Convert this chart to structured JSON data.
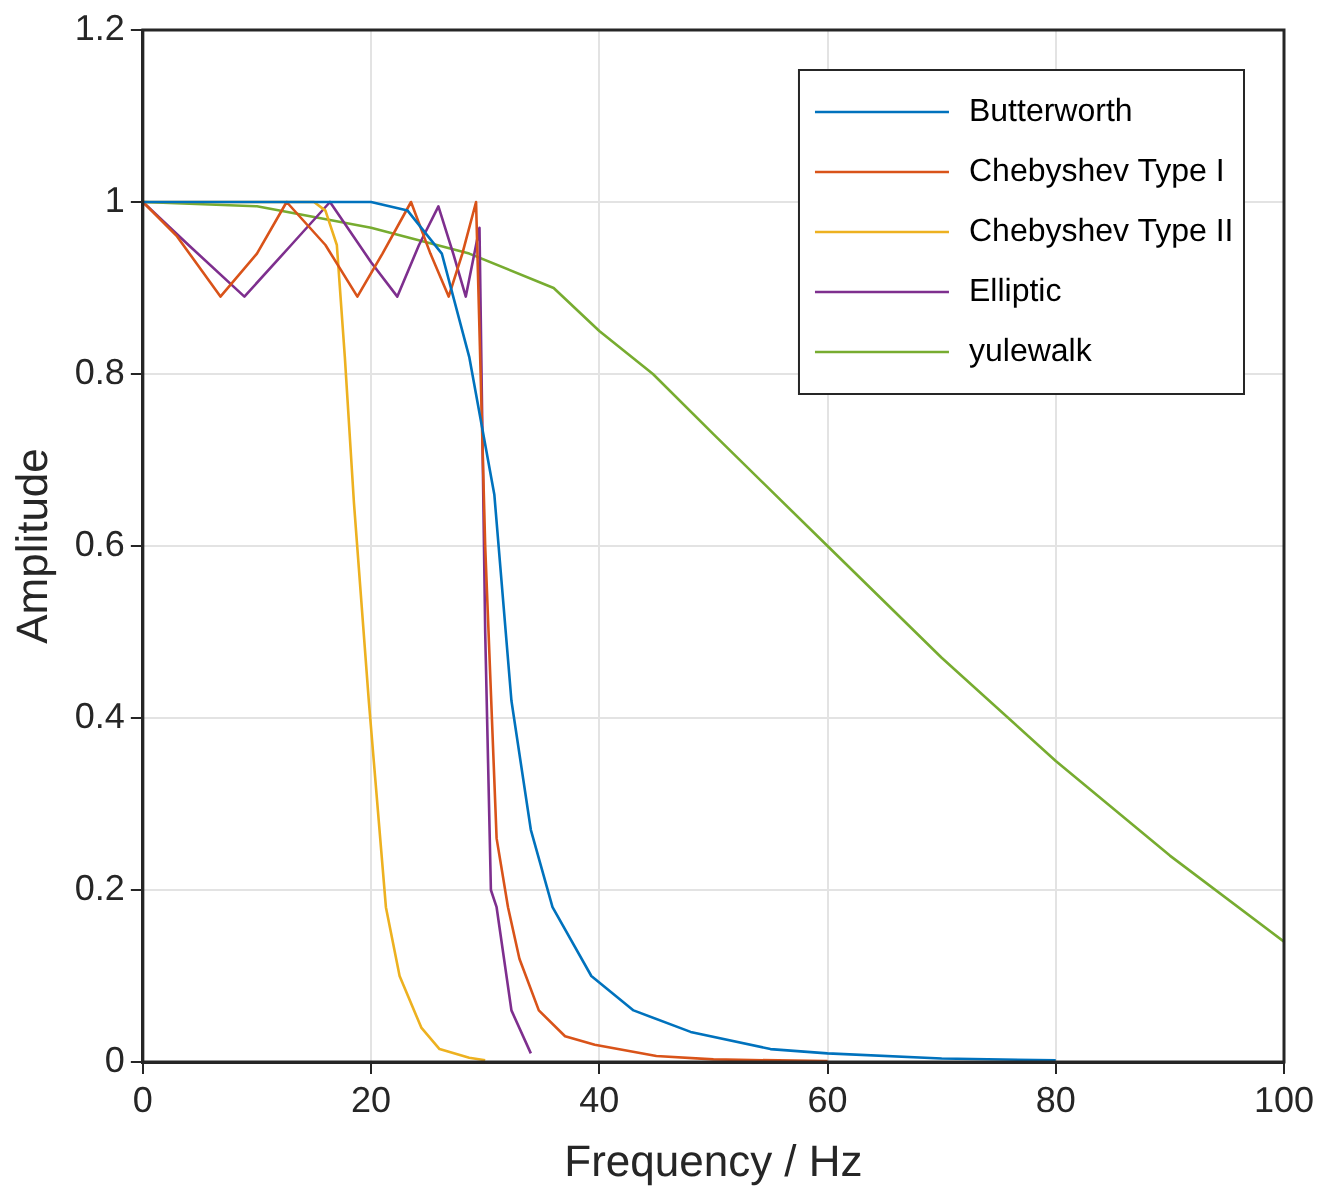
{
  "chart_data": {
    "type": "line",
    "xlabel": "Frequency / Hz",
    "ylabel": "Amplitude",
    "xlim": [
      0,
      100
    ],
    "ylim": [
      0,
      1.2
    ],
    "xticks": [
      0,
      20,
      40,
      60,
      80,
      100
    ],
    "yticks": [
      0,
      0.2,
      0.4,
      0.6,
      0.8,
      1,
      1.2
    ],
    "grid": true,
    "legend": "top right",
    "marker": "none",
    "line_style": "solid",
    "series": [
      {
        "name": "Butterworth",
        "color": "#0072bd",
        "x": [
          0,
          10,
          20,
          23.2,
          26.2,
          28.6,
          30.8,
          32.3,
          34,
          35.9,
          39.3,
          43,
          48,
          55,
          60,
          70,
          80
        ],
        "values": [
          1,
          1,
          1,
          0.99,
          0.94,
          0.82,
          0.66,
          0.42,
          0.27,
          0.18,
          0.1,
          0.06,
          0.035,
          0.015,
          0.01,
          0.004,
          0.002
        ]
      },
      {
        "name": "Chebyshev Type I",
        "color": "#d95319",
        "x": [
          0,
          3,
          6.8,
          10,
          12.6,
          16,
          18.8,
          21,
          23.5,
          25.2,
          26.8,
          28,
          29.2,
          30,
          31,
          32,
          33,
          34.7,
          37,
          39.6,
          45,
          50,
          60
        ],
        "values": [
          1,
          0.96,
          0.89,
          0.94,
          1,
          0.95,
          0.89,
          0.94,
          1,
          0.94,
          0.89,
          0.94,
          1,
          0.6,
          0.26,
          0.18,
          0.12,
          0.06,
          0.03,
          0.02,
          0.007,
          0.003,
          0.001
        ]
      },
      {
        "name": "Chebyshev Type II",
        "color": "#edb120",
        "x": [
          0,
          10,
          15,
          16,
          17,
          17.7,
          18.5,
          19.8,
          21.3,
          22.5,
          24.4,
          26,
          28.6,
          30
        ],
        "values": [
          1,
          1,
          1,
          0.99,
          0.95,
          0.82,
          0.65,
          0.42,
          0.18,
          0.1,
          0.04,
          0.015,
          0.005,
          0.002
        ]
      },
      {
        "name": "Elliptic",
        "color": "#7e2f8e",
        "x": [
          0,
          4,
          8.9,
          13,
          16.4,
          20,
          22.3,
          24.2,
          25.9,
          27.2,
          28.3,
          29.5,
          30,
          30.5,
          31,
          32.3,
          34
        ],
        "values": [
          1,
          0.95,
          0.89,
          0.95,
          1,
          0.93,
          0.89,
          0.95,
          0.995,
          0.94,
          0.89,
          0.97,
          0.5,
          0.2,
          0.18,
          0.06,
          0.01
        ]
      },
      {
        "name": "yulewalk",
        "color": "#77ac30",
        "x": [
          0,
          10,
          20,
          28.6,
          36,
          40,
          44.7,
          50,
          60,
          70,
          80,
          90,
          100
        ],
        "values": [
          1,
          0.995,
          0.97,
          0.94,
          0.9,
          0.85,
          0.8,
          0.73,
          0.6,
          0.47,
          0.35,
          0.24,
          0.14
        ]
      }
    ]
  }
}
